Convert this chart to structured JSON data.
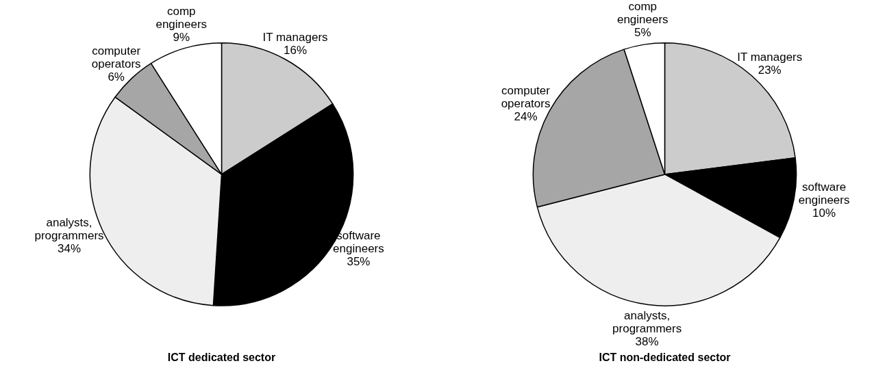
{
  "chart_data": [
    {
      "type": "pie",
      "title": "ICT dedicated sector",
      "categories": [
        "IT managers",
        "software\nengineers",
        "analysts,\nprogrammers",
        "computer\noperators",
        "comp\nengineers"
      ],
      "values": [
        16,
        35,
        34,
        6,
        9
      ],
      "value_labels": [
        "16%",
        "35%",
        "34%",
        "6%",
        "9%"
      ],
      "colors": [
        "#cccccc",
        "#000000",
        "#eeeeee",
        "#a6a6a6",
        "#ffffff"
      ]
    },
    {
      "type": "pie",
      "title": "ICT non-dedicated sector",
      "categories": [
        "IT managers",
        "software\nengineers",
        "analysts,\nprogrammers",
        "computer\noperators",
        "comp\nengineers"
      ],
      "values": [
        23,
        10,
        38,
        24,
        5
      ],
      "value_labels": [
        "23%",
        "10%",
        "38%",
        "24%",
        "5%"
      ],
      "colors": [
        "#cccccc",
        "#000000",
        "#eeeeee",
        "#a6a6a6",
        "#ffffff"
      ]
    }
  ]
}
